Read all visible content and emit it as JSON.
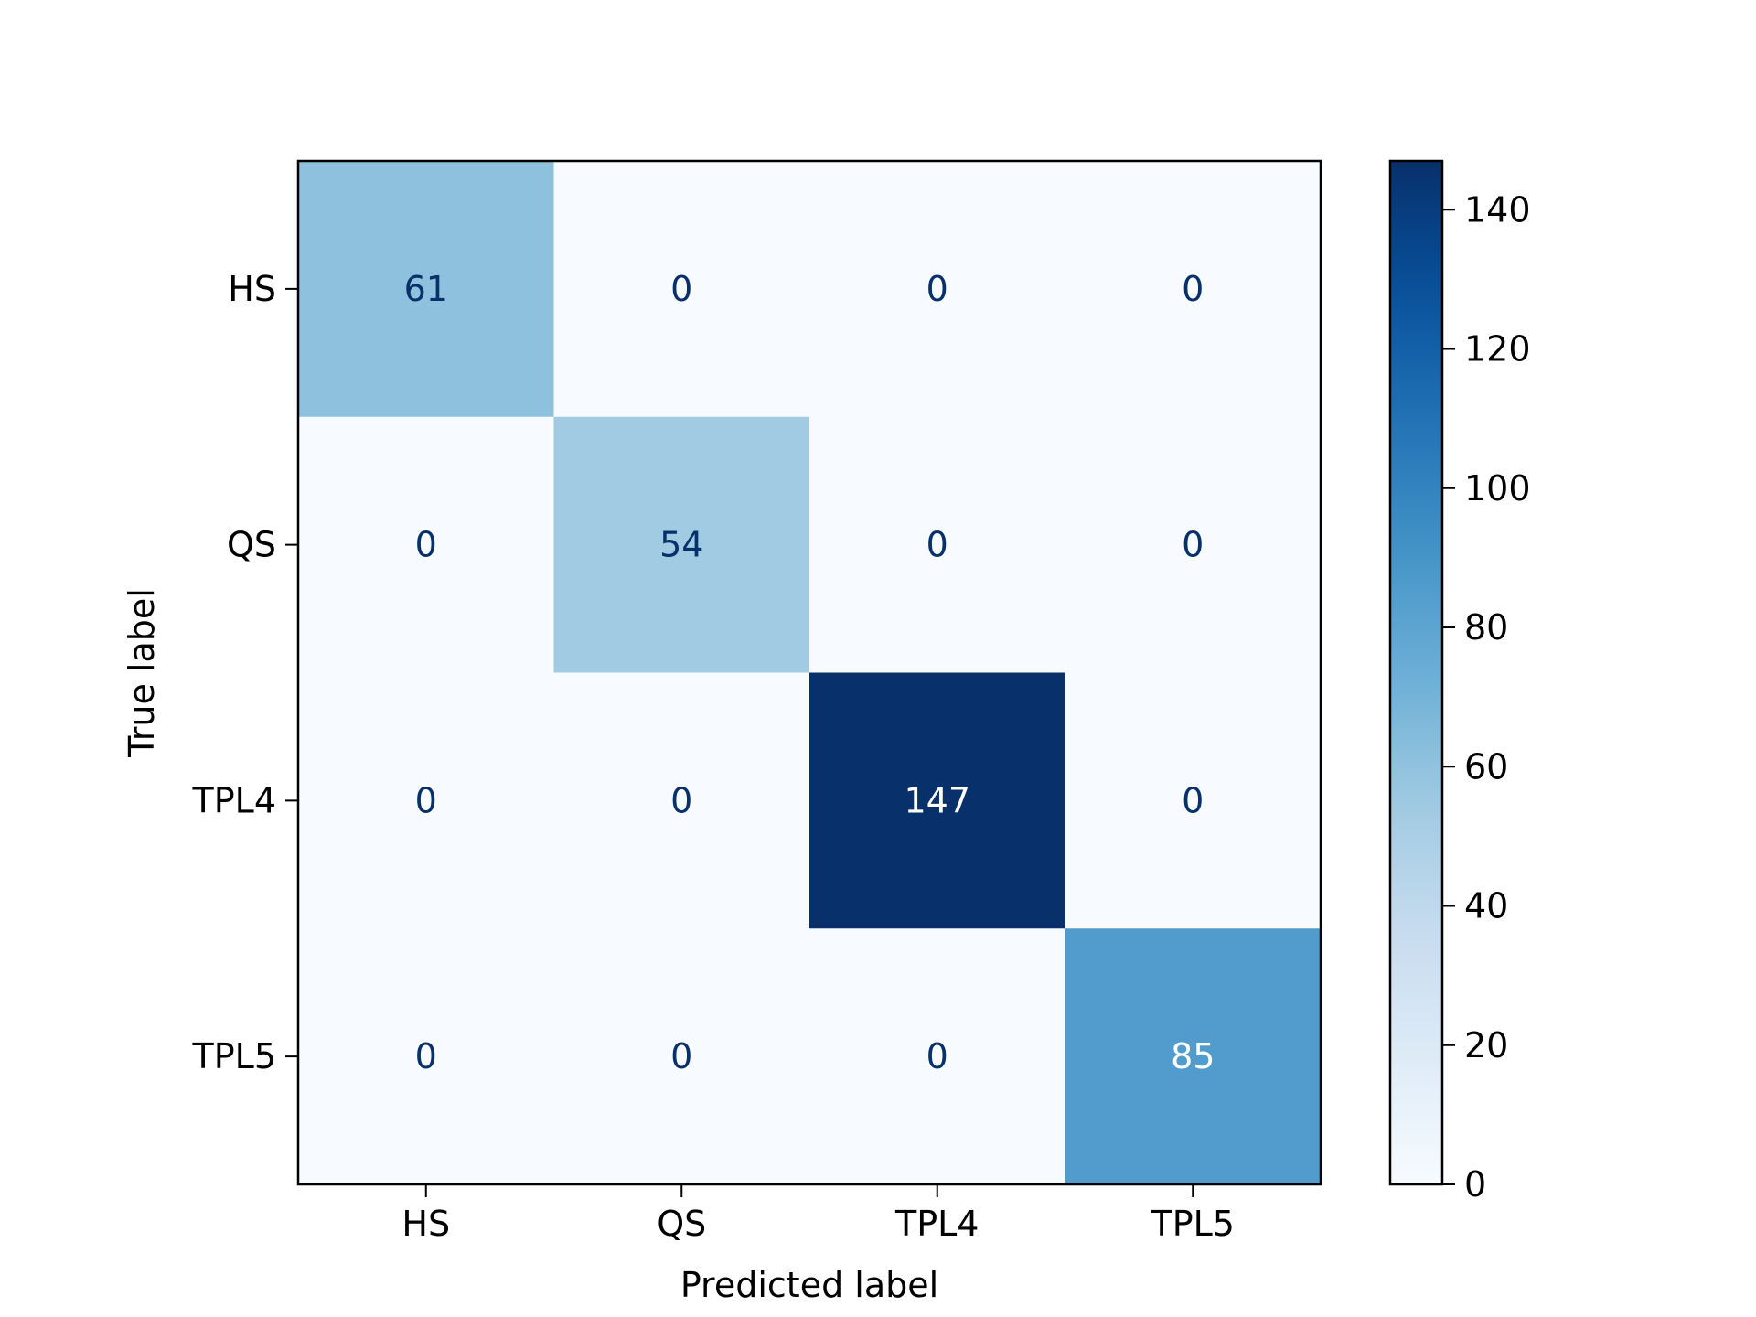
{
  "chart_data": {
    "type": "heatmap",
    "title": "",
    "xlabel": "Predicted label",
    "ylabel": "True label",
    "x_categories": [
      "HS",
      "QS",
      "TPL4",
      "TPL5"
    ],
    "y_categories": [
      "HS",
      "QS",
      "TPL4",
      "TPL5"
    ],
    "values": [
      [
        61,
        0,
        0,
        0
      ],
      [
        0,
        54,
        0,
        0
      ],
      [
        0,
        0,
        147,
        0
      ],
      [
        0,
        0,
        0,
        85
      ]
    ],
    "colormap": "Blues",
    "colorbar": {
      "min": 0,
      "max": 147,
      "ticks": [
        0,
        20,
        40,
        60,
        80,
        100,
        120,
        140
      ]
    },
    "grid": false
  }
}
